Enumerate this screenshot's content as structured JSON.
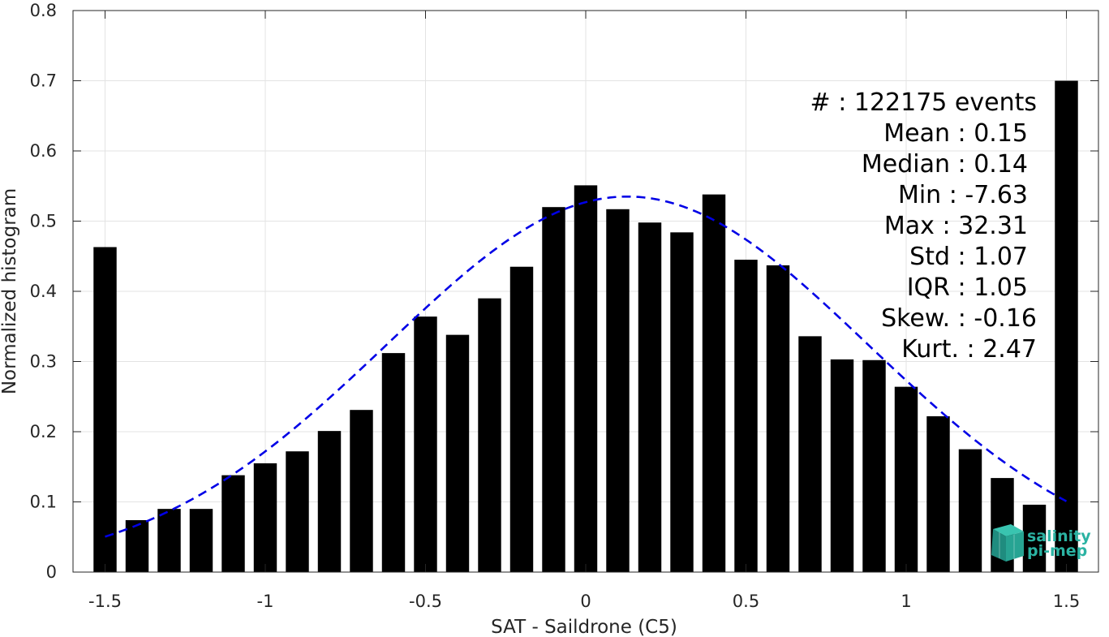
{
  "chart_data": {
    "type": "bar",
    "title": "",
    "xlabel": "SAT - Saildrone (C5)",
    "ylabel": "Normalized histogram",
    "xlim": [
      -1.6,
      1.6
    ],
    "ylim": [
      0,
      0.8
    ],
    "grid": true,
    "bar_color": "#000000",
    "x_ticks": [
      -1.5,
      -1,
      -0.5,
      0,
      0.5,
      1,
      1.5
    ],
    "x_tick_labels": [
      "-1.5",
      "-1",
      "-0.5",
      "0",
      "0.5",
      "1",
      "1.5"
    ],
    "y_ticks": [
      0,
      0.1,
      0.2,
      0.3,
      0.4,
      0.5,
      0.6,
      0.7,
      0.8
    ],
    "y_tick_labels": [
      "0",
      "0.1",
      "0.2",
      "0.3",
      "0.4",
      "0.5",
      "0.6",
      "0.7",
      "0.8"
    ],
    "bins": [
      {
        "x": -1.5,
        "y": 0.463
      },
      {
        "x": -1.4,
        "y": 0.074
      },
      {
        "x": -1.3,
        "y": 0.09
      },
      {
        "x": -1.2,
        "y": 0.09
      },
      {
        "x": -1.1,
        "y": 0.138
      },
      {
        "x": -1.0,
        "y": 0.155
      },
      {
        "x": -0.9,
        "y": 0.172
      },
      {
        "x": -0.8,
        "y": 0.201
      },
      {
        "x": -0.7,
        "y": 0.231
      },
      {
        "x": -0.6,
        "y": 0.312
      },
      {
        "x": -0.5,
        "y": 0.364
      },
      {
        "x": -0.4,
        "y": 0.338
      },
      {
        "x": -0.3,
        "y": 0.39
      },
      {
        "x": -0.2,
        "y": 0.435
      },
      {
        "x": -0.1,
        "y": 0.52
      },
      {
        "x": 0.0,
        "y": 0.551
      },
      {
        "x": 0.1,
        "y": 0.517
      },
      {
        "x": 0.2,
        "y": 0.498
      },
      {
        "x": 0.3,
        "y": 0.484
      },
      {
        "x": 0.4,
        "y": 0.538
      },
      {
        "x": 0.5,
        "y": 0.445
      },
      {
        "x": 0.6,
        "y": 0.437
      },
      {
        "x": 0.7,
        "y": 0.336
      },
      {
        "x": 0.8,
        "y": 0.303
      },
      {
        "x": 0.9,
        "y": 0.302
      },
      {
        "x": 1.0,
        "y": 0.264
      },
      {
        "x": 1.1,
        "y": 0.222
      },
      {
        "x": 1.2,
        "y": 0.175
      },
      {
        "x": 1.3,
        "y": 0.134
      },
      {
        "x": 1.4,
        "y": 0.096
      },
      {
        "x": 1.5,
        "y": 0.7
      }
    ],
    "fit_curve": {
      "type": "gaussian",
      "style": "dashed",
      "color": "#0000e6",
      "mean": 0.13,
      "std": 0.75,
      "peak": 0.535,
      "x_range": [
        -1.5,
        1.5
      ]
    },
    "stats": [
      "#  : 122175 events",
      "Mean : 0.15",
      "Median : 0.14",
      "Min : -7.63",
      "Max : 32.31",
      "Std : 1.07",
      "IQR : 1.05",
      "Skew. : -0.16",
      "Kurt. : 2.47"
    ]
  },
  "logo": {
    "line1": "salinity",
    "line2": "pi-mep",
    "color": "#2bb3a3"
  }
}
